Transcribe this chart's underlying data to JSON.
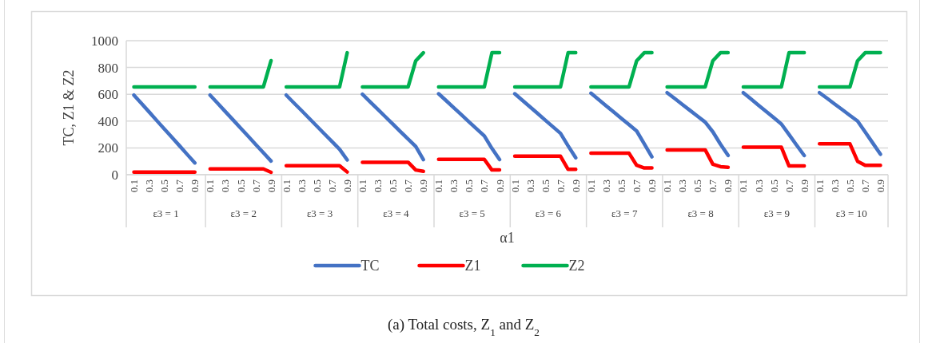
{
  "chart_data": {
    "type": "line",
    "title": "(a) Total costs, Z$_{1}$ and Z$_{2}$",
    "xlabel": "α1",
    "ylabel": "TC, Z1 & Z2",
    "categories": [
      "0.1",
      null,
      "0.3",
      null,
      "0.5",
      null,
      "0.7",
      null,
      "0.9",
      null,
      "0.1",
      null,
      "0.3",
      null,
      "0.5",
      null,
      "0.7",
      null,
      "0.9",
      null,
      "0.1",
      null,
      "0.3",
      null,
      "0.5",
      null,
      "0.7",
      null,
      "0.9",
      null,
      "0.1",
      null,
      "0.3",
      null,
      "0.5",
      null,
      "0.7",
      null,
      "0.9",
      null,
      "0.1",
      null,
      "0.3",
      null,
      "0.5",
      null,
      "0.7",
      null,
      "0.9",
      null,
      "0.1",
      null,
      "0.3",
      null,
      "0.5",
      null,
      "0.7",
      null,
      "0.9",
      null,
      "0.1",
      null,
      "0.3",
      null,
      "0.5",
      null,
      "0.7",
      null,
      "0.9",
      null,
      "0.1",
      null,
      "0.3",
      null,
      "0.5",
      null,
      "0.7",
      null,
      "0.9",
      null,
      "0.1",
      null,
      "0.3",
      null,
      "0.5",
      null,
      "0.7",
      null,
      "0.9",
      null,
      "0.1",
      null,
      "0.3",
      null,
      "0.5",
      null,
      "0.7",
      null,
      "0.9"
    ],
    "annotations": [
      "ε3 =  1",
      "ε3 =  2",
      "ε3 =  3",
      "ε3 =  4",
      "ε3 =  5",
      "ε3 =  6",
      "ε3 =  7",
      "ε3 =  8",
      "ε3 =  9",
      "ε3 =  10"
    ],
    "series": [
      {
        "name": "TC",
        "color": "#4472c4",
        "values": [
          594,
          531,
          468,
          404,
          341,
          278,
          215,
          151,
          88,
          null,
          594,
          533,
          471,
          410,
          348,
          287,
          225,
          164,
          102,
          null,
          594,
          536,
          479,
          421,
          363,
          305,
          248,
          190,
          110,
          null,
          600,
          544,
          489,
          433,
          377,
          321,
          266,
          210,
          113,
          null,
          604,
          552,
          499,
          447,
          394,
          342,
          289,
          196,
          113,
          null,
          604,
          555,
          506,
          457,
          407,
          358,
          309,
          215,
          126,
          null,
          608,
          561,
          514,
          467,
          420,
          373,
          326,
          230,
          133,
          null,
          612,
          568,
          524,
          480,
          436,
          392,
          320,
          228,
          144,
          null,
          612,
          565,
          518,
          472,
          425,
          378,
          300,
          220,
          143,
          null,
          612,
          570,
          527,
          485,
          442,
          400,
          318,
          236,
          153
        ]
      },
      {
        "name": "Z1",
        "color": "#ff0000",
        "values": [
          20,
          20,
          20,
          20,
          20,
          20,
          20,
          20,
          20,
          null,
          43,
          43,
          43,
          43,
          43,
          43,
          43,
          43,
          18,
          null,
          67,
          67,
          67,
          67,
          67,
          67,
          67,
          67,
          20,
          null,
          93,
          93,
          93,
          93,
          93,
          93,
          93,
          35,
          25,
          null,
          115,
          115,
          115,
          115,
          115,
          115,
          115,
          35,
          35,
          null,
          138,
          138,
          138,
          138,
          138,
          138,
          138,
          40,
          40,
          null,
          160,
          160,
          160,
          160,
          160,
          160,
          70,
          50,
          50,
          null,
          185,
          185,
          185,
          185,
          185,
          185,
          78,
          60,
          55,
          null,
          205,
          205,
          205,
          205,
          205,
          205,
          65,
          65,
          65,
          null,
          230,
          230,
          230,
          230,
          230,
          100,
          70,
          70,
          70
        ]
      },
      {
        "name": "Z2",
        "color": "#00b050",
        "values": [
          655,
          655,
          655,
          655,
          655,
          655,
          655,
          655,
          655,
          null,
          655,
          655,
          655,
          655,
          655,
          655,
          655,
          655,
          851,
          null,
          655,
          655,
          655,
          655,
          655,
          655,
          655,
          655,
          910,
          null,
          655,
          655,
          655,
          655,
          655,
          655,
          655,
          850,
          910,
          null,
          655,
          655,
          655,
          655,
          655,
          655,
          655,
          910,
          910,
          null,
          655,
          655,
          655,
          655,
          655,
          655,
          655,
          910,
          910,
          null,
          655,
          655,
          655,
          655,
          655,
          655,
          850,
          910,
          910,
          null,
          655,
          655,
          655,
          655,
          655,
          655,
          850,
          910,
          910,
          null,
          655,
          655,
          655,
          655,
          655,
          655,
          910,
          910,
          910,
          null,
          655,
          655,
          655,
          655,
          655,
          850,
          910,
          910,
          910
        ]
      }
    ],
    "ylim": [
      0,
      1000
    ],
    "yticks": [
      0,
      200,
      400,
      600,
      800,
      1000
    ],
    "grid": "y",
    "legend": "bottom",
    "marker": "none",
    "line_style": "solid"
  }
}
